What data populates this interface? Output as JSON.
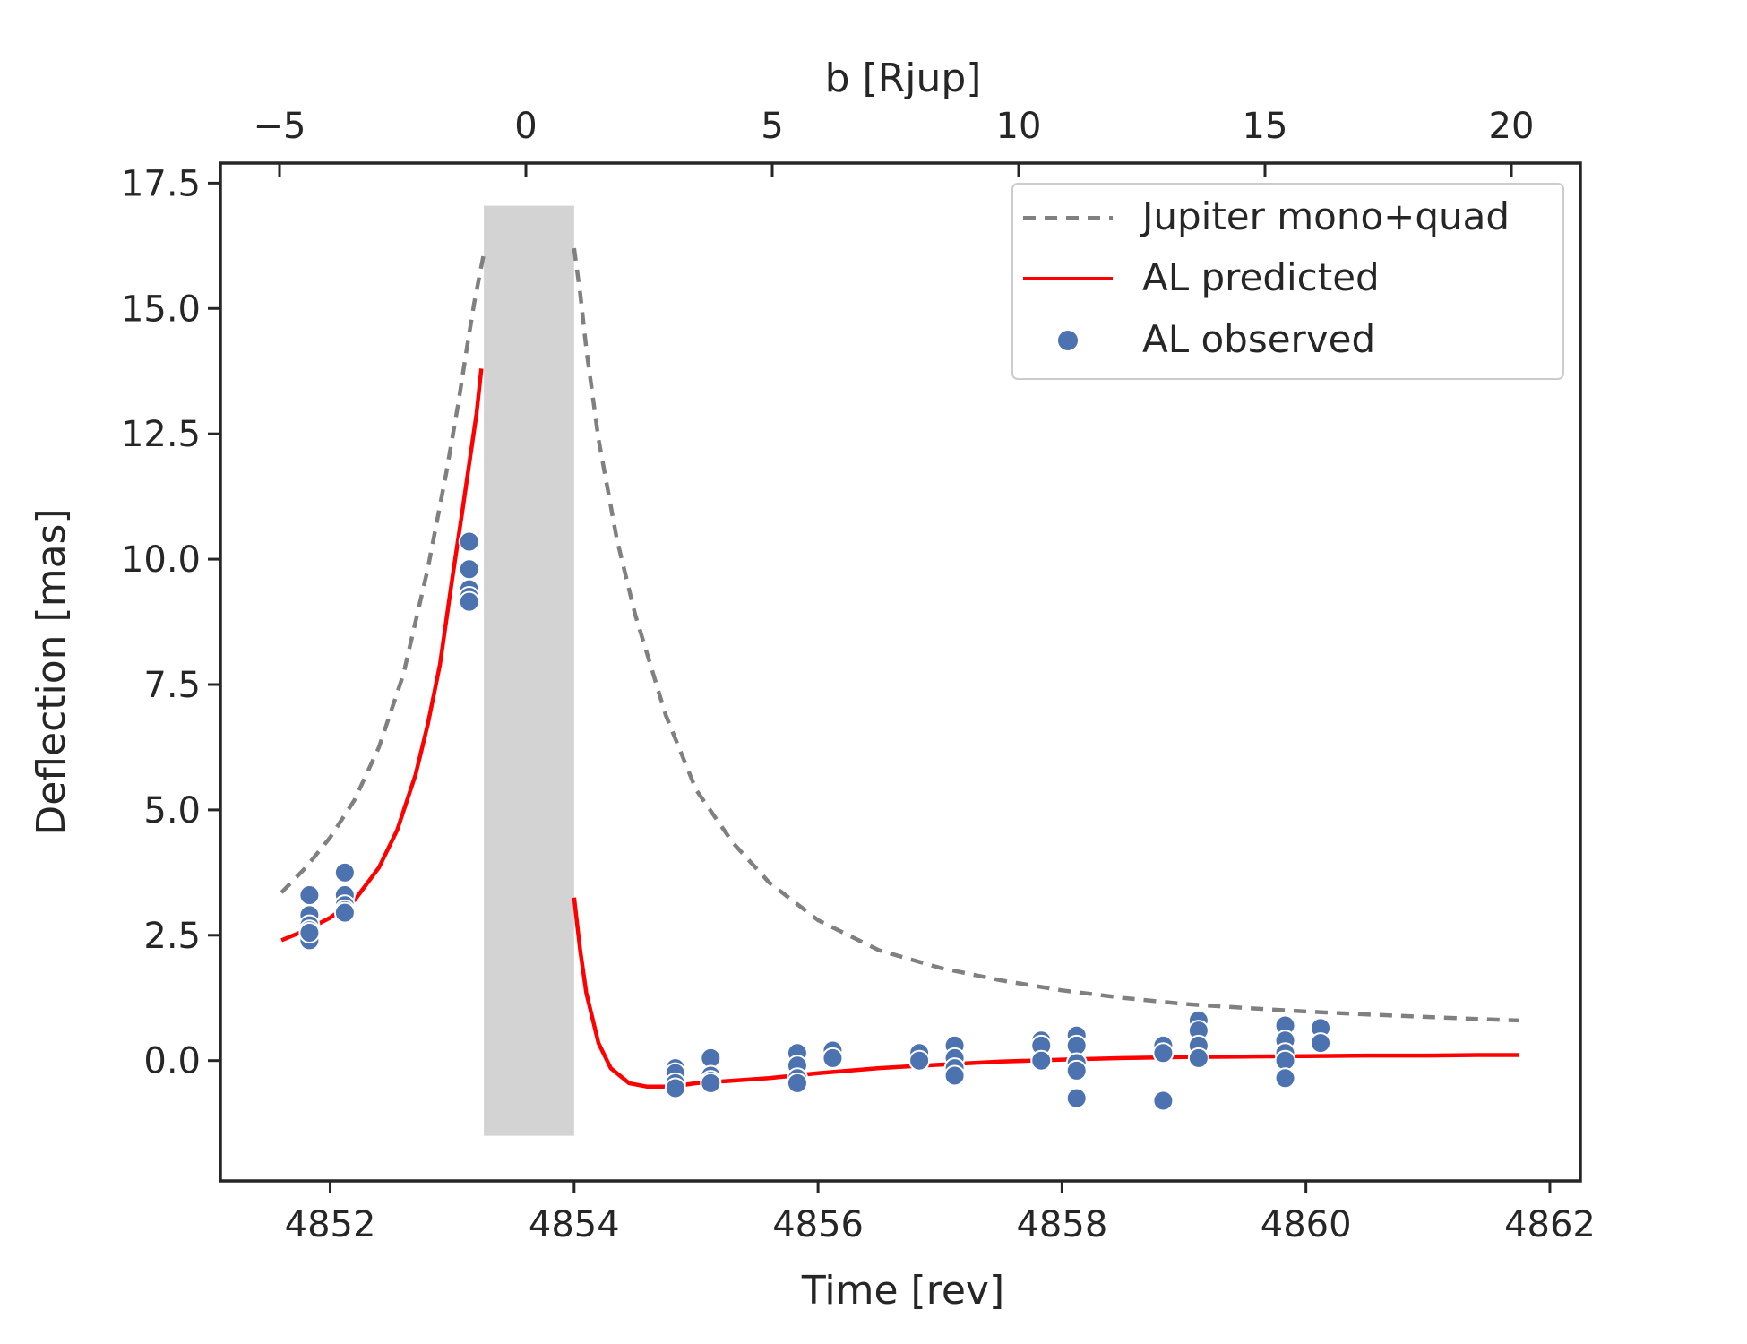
{
  "chart_data": {
    "type": "line",
    "title": "",
    "xlabel": "Time [rev]",
    "ylabel": "Deflection [mas]",
    "top_xlabel": "b [Rjup]",
    "xlim": [
      4851.1,
      4862.25
    ],
    "ylim": [
      -2.4,
      17.9
    ],
    "top_xlim": [
      -6.2,
      21.4
    ],
    "x_ticks": [
      4852,
      4854,
      4856,
      4858,
      4860,
      4862
    ],
    "y_ticks": [
      0.0,
      2.5,
      5.0,
      7.5,
      10.0,
      12.5,
      15.0,
      17.5
    ],
    "y_tick_labels": [
      "0.0",
      "2.5",
      "5.0",
      "7.5",
      "10.0",
      "12.5",
      "15.0",
      "17.5"
    ],
    "top_ticks": [
      -5,
      0,
      5,
      10,
      15,
      20
    ],
    "top_tick_labels": [
      "−5",
      "0",
      "5",
      "10",
      "15",
      "20"
    ],
    "shaded_region": {
      "x": [
        4853.26,
        4854.0
      ],
      "y": [
        -1.5,
        17.05
      ],
      "color": "#d3d3d3"
    },
    "legend": {
      "placement": "top-right",
      "entries": [
        {
          "label": "Jupiter mono+quad",
          "style": "dashed",
          "color": "#808080"
        },
        {
          "label": "AL predicted",
          "style": "solid",
          "color": "#ff0000"
        },
        {
          "label": "AL observed",
          "style": "marker",
          "color": "#4c72b0"
        }
      ]
    },
    "series": [
      {
        "name": "Jupiter mono+quad",
        "color": "#808080",
        "style": "dashed",
        "segments": [
          {
            "x": [
              4851.6,
              4851.8,
              4852.0,
              4852.2,
              4852.4,
              4852.6,
              4852.8,
              4852.95,
              4853.05,
              4853.12,
              4853.18,
              4853.22,
              4853.26
            ],
            "y": [
              3.35,
              3.85,
              4.45,
              5.2,
              6.25,
              7.7,
              9.8,
              11.7,
              13.1,
              14.2,
              15.1,
              15.6,
              16.1
            ]
          },
          {
            "x": [
              4854.0,
              4854.05,
              4854.1,
              4854.2,
              4854.35,
              4854.5,
              4854.75,
              4855.0,
              4855.3,
              4855.6,
              4856.0,
              4856.5,
              4857.0,
              4857.5,
              4858.0,
              4858.5,
              4859.0,
              4859.5,
              4860.0,
              4860.5,
              4861.0,
              4861.4,
              4861.75
            ],
            "y": [
              16.2,
              15.3,
              14.2,
              12.4,
              10.4,
              8.9,
              6.9,
              5.4,
              4.35,
              3.55,
              2.8,
              2.2,
              1.85,
              1.6,
              1.4,
              1.25,
              1.13,
              1.05,
              0.98,
              0.92,
              0.87,
              0.83,
              0.8
            ]
          }
        ]
      },
      {
        "name": "AL predicted",
        "color": "#ff0000",
        "style": "solid",
        "segments": [
          {
            "x": [
              4851.6,
              4851.8,
              4852.0,
              4852.2,
              4852.4,
              4852.55,
              4852.7,
              4852.8,
              4852.9,
              4853.0,
              4853.08,
              4853.14,
              4853.2,
              4853.24
            ],
            "y": [
              2.4,
              2.6,
              2.85,
              3.2,
              3.85,
              4.6,
              5.7,
              6.7,
              7.9,
              9.6,
              10.9,
              11.9,
              12.9,
              13.8
            ]
          },
          {
            "x": [
              4854.0,
              4854.05,
              4854.1,
              4854.2,
              4854.3,
              4854.45,
              4854.6,
              4854.8,
              4855.0,
              4855.3,
              4855.6,
              4856.0,
              4856.5,
              4857.0,
              4857.5,
              4858.0,
              4858.5,
              4859.0,
              4859.5,
              4860.0,
              4860.5,
              4861.0,
              4861.4,
              4861.75
            ],
            "y": [
              3.25,
              2.2,
              1.35,
              0.35,
              -0.15,
              -0.45,
              -0.52,
              -0.52,
              -0.45,
              -0.4,
              -0.35,
              -0.25,
              -0.15,
              -0.08,
              -0.02,
              0.02,
              0.05,
              0.07,
              0.08,
              0.09,
              0.1,
              0.1,
              0.11,
              0.11
            ]
          }
        ]
      },
      {
        "name": "AL observed",
        "color": "#4c72b0",
        "style": "scatter",
        "x": [
          4851.83,
          4851.83,
          4851.83,
          4851.83,
          4851.83,
          4851.83,
          4851.83,
          4852.12,
          4852.12,
          4852.12,
          4852.12,
          4852.12,
          4853.14,
          4853.14,
          4853.14,
          4853.14,
          4853.14,
          4854.83,
          4854.83,
          4854.83,
          4854.83,
          4855.12,
          4855.12,
          4855.12,
          4855.12,
          4855.83,
          4855.83,
          4855.83,
          4855.83,
          4856.12,
          4856.12,
          4856.83,
          4856.83,
          4857.12,
          4857.12,
          4857.12,
          4857.12,
          4857.83,
          4857.83,
          4857.83,
          4858.12,
          4858.12,
          4858.12,
          4858.12,
          4858.12,
          4858.83,
          4858.83,
          4858.83,
          4859.12,
          4859.12,
          4859.12,
          4859.12,
          4859.83,
          4859.83,
          4859.83,
          4859.83,
          4859.83,
          4860.12,
          4860.12
        ],
        "y": [
          3.3,
          2.9,
          2.7,
          2.6,
          2.5,
          2.4,
          2.55,
          3.75,
          3.3,
          3.1,
          3.0,
          2.95,
          10.35,
          9.8,
          9.4,
          9.25,
          9.15,
          -0.15,
          -0.25,
          -0.45,
          -0.55,
          0.05,
          -0.3,
          -0.4,
          -0.45,
          0.15,
          -0.1,
          -0.35,
          -0.45,
          0.2,
          0.05,
          0.15,
          0.0,
          0.3,
          0.05,
          -0.15,
          -0.3,
          0.4,
          0.3,
          0.0,
          0.5,
          0.3,
          -0.05,
          -0.2,
          -0.75,
          0.3,
          0.15,
          -0.8,
          0.8,
          0.6,
          0.3,
          0.05,
          0.7,
          0.4,
          0.15,
          0.0,
          -0.35,
          0.65,
          0.35
        ]
      }
    ]
  }
}
